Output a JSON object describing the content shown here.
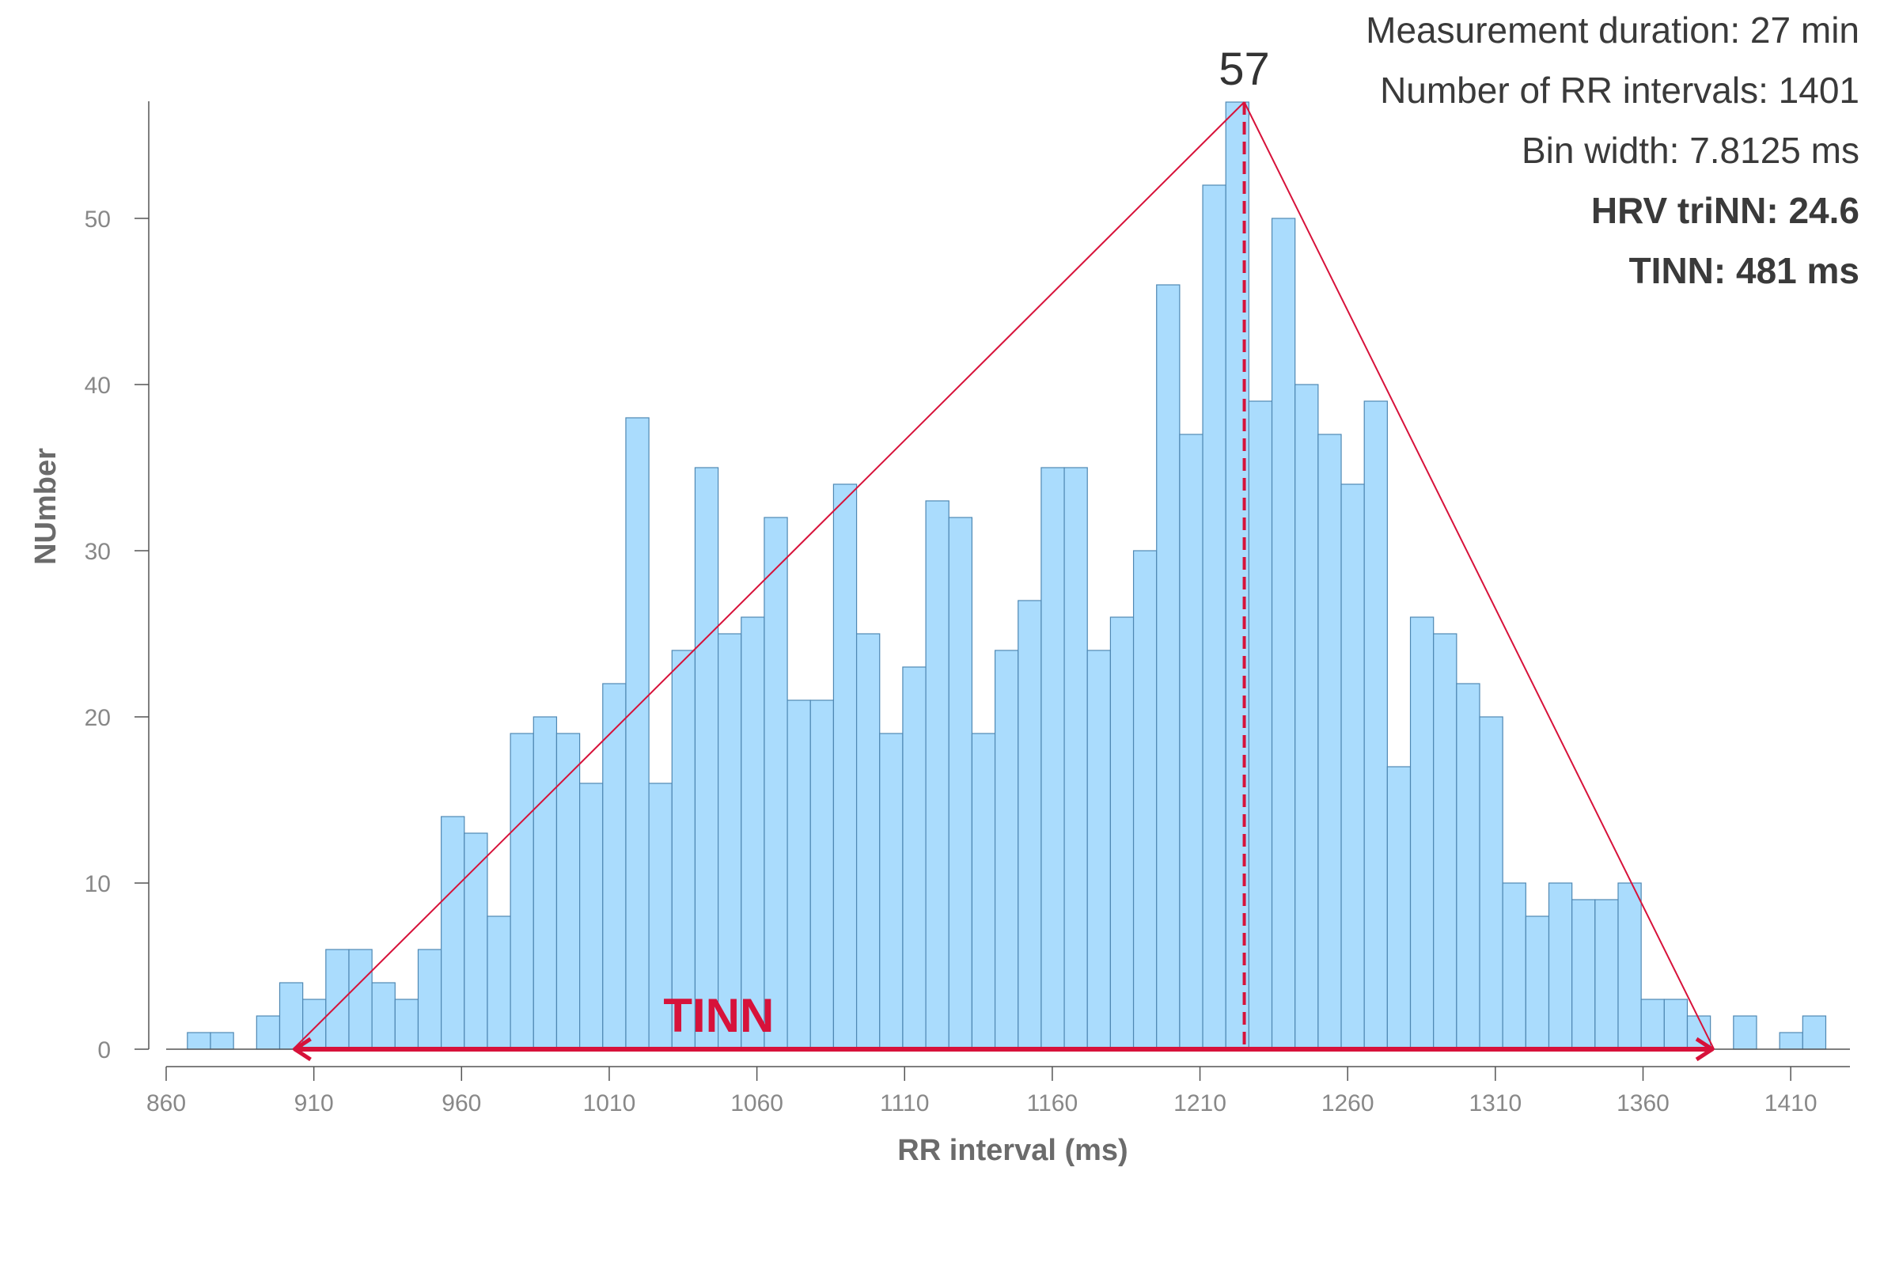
{
  "chart_data": {
    "type": "histogram",
    "title": "",
    "xlabel": "RR interval (ms)",
    "ylabel": "NUmber",
    "xlim": [
      860,
      1430
    ],
    "ylim": [
      0,
      57
    ],
    "xticks": [
      860,
      910,
      960,
      1010,
      1060,
      1110,
      1160,
      1210,
      1260,
      1310,
      1360,
      1410
    ],
    "yticks": [
      0,
      10,
      20,
      30,
      40,
      50
    ],
    "bin_start": 867.1875,
    "bin_width": 7.8125,
    "counts": [
      1,
      1,
      0,
      2,
      4,
      3,
      6,
      6,
      4,
      3,
      6,
      14,
      13,
      8,
      19,
      20,
      19,
      16,
      22,
      38,
      16,
      24,
      35,
      25,
      26,
      32,
      21,
      21,
      34,
      25,
      19,
      23,
      33,
      32,
      19,
      24,
      27,
      35,
      35,
      24,
      26,
      30,
      46,
      37,
      52,
      57,
      39,
      50,
      40,
      37,
      34,
      39,
      17,
      26,
      25,
      22,
      20,
      10,
      8,
      10,
      9,
      9,
      10,
      3,
      3,
      2,
      0,
      2,
      0,
      1,
      2
    ],
    "bar_color": "#aadcfd",
    "bar_edge_color": "#4f88b3",
    "accent_color": "#d7123a",
    "peak": {
      "x": 1225,
      "value": 57,
      "label": "57"
    },
    "triangle": {
      "left_x": 903,
      "right_x": 1384,
      "peak_x": 1225,
      "peak_y": 57
    },
    "tinn_label": "TINN"
  },
  "info": {
    "duration": "Measurement duration: 27 min",
    "rr_count": "Number of RR intervals: 1401",
    "bin_width": "Bin width: 7.8125 ms",
    "hrv_trinn": "HRV triNN: 24.6",
    "tinn": "TINN: 481 ms"
  }
}
